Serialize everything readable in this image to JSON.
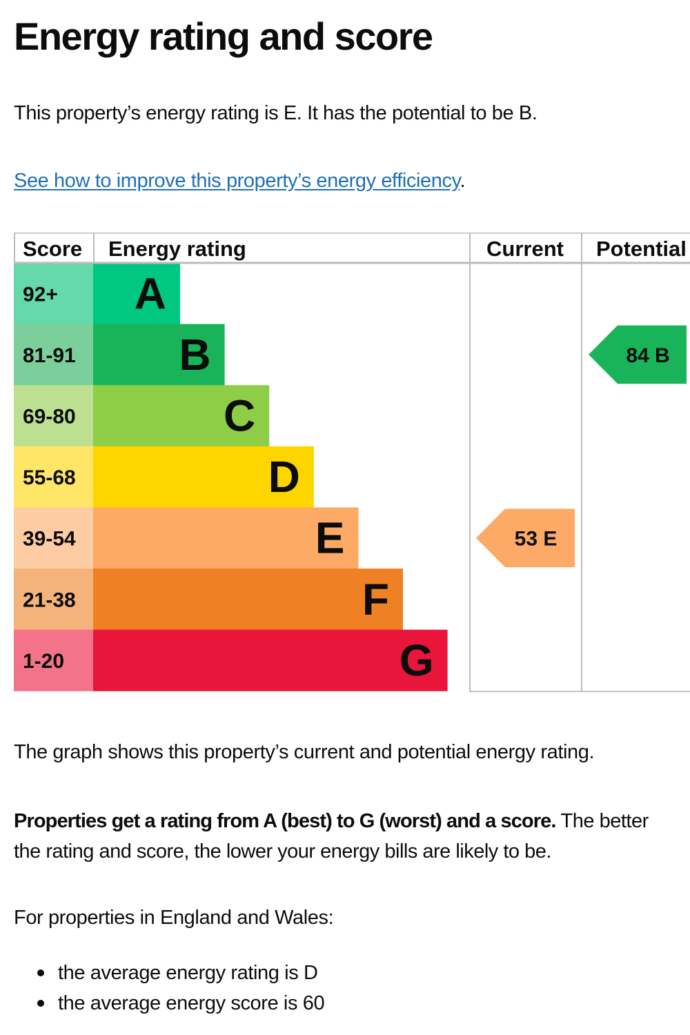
{
  "heading": "Energy rating and score",
  "intro": "This property’s energy rating is E. It has the potential to be B.",
  "improve_link": {
    "text": "See how to improve this property’s energy efficiency",
    "suffix": "."
  },
  "chart_data": {
    "type": "table",
    "columns": [
      "Score",
      "Energy rating",
      "Current",
      "Potential"
    ],
    "bands": [
      {
        "score": "92+",
        "letter": "A",
        "color": "#00c781",
        "score_color": "#66d9ab"
      },
      {
        "score": "81-91",
        "letter": "B",
        "color": "#19b459",
        "score_color": "#7bcf9a"
      },
      {
        "score": "69-80",
        "letter": "C",
        "color": "#8dce46",
        "score_color": "#bce090"
      },
      {
        "score": "55-68",
        "letter": "D",
        "color": "#ffd500",
        "score_color": "#ffe666"
      },
      {
        "score": "39-54",
        "letter": "E",
        "color": "#fcaa65",
        "score_color": "#fdcca3"
      },
      {
        "score": "21-38",
        "letter": "F",
        "color": "#ef8023",
        "score_color": "#f5b37b"
      },
      {
        "score": "1-20",
        "letter": "G",
        "color": "#e9153b",
        "score_color": "#f2738a"
      }
    ],
    "current": {
      "label": "53  E",
      "score": 53,
      "letter": "E",
      "color": "#fcaa65"
    },
    "potential": {
      "label": "84  B",
      "score": 84,
      "letter": "B",
      "color": "#19b459"
    }
  },
  "graph_text": "The graph shows this property’s current and potential energy rating.",
  "summary": {
    "bold": "Properties get a rating from A (best) to G (worst) and a score.",
    "rest_line1": " The better",
    "rest_line2": "the rating and score, the lower your energy bills are likely to be."
  },
  "averages": {
    "intro": "For properties in England and Wales:",
    "items": [
      "the average energy rating is D",
      "the average energy score is 60"
    ]
  }
}
